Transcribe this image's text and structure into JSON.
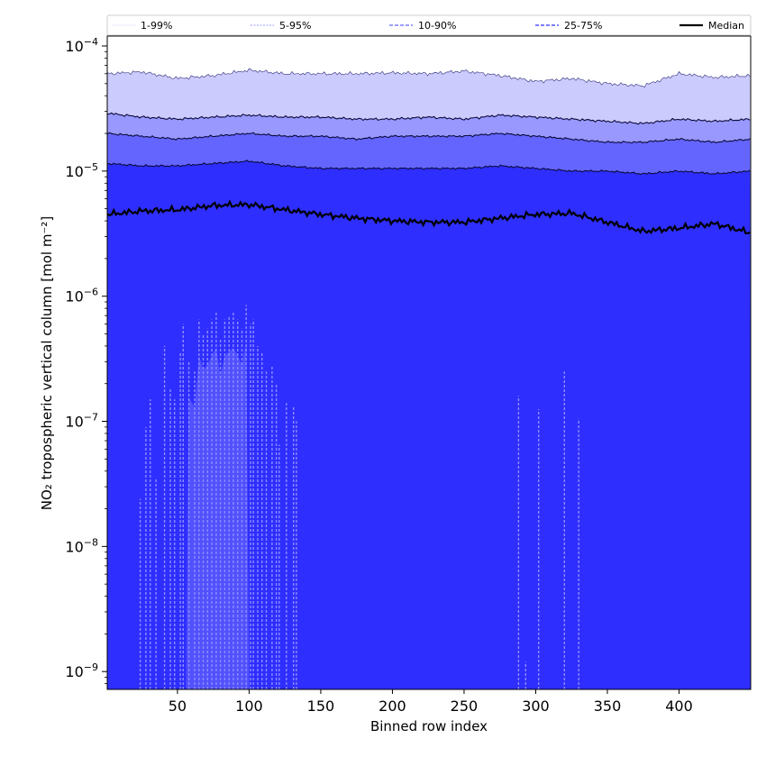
{
  "chart_data": {
    "type": "area",
    "xlabel": "Binned row index",
    "ylabel": "NO₂ tropospheric vertical column [mol m⁻²]",
    "y_scale": "log",
    "xlim": [
      1,
      450
    ],
    "ylim": [
      7.2e-10,
      0.00012
    ],
    "x_ticks": [
      50,
      100,
      150,
      200,
      250,
      300,
      350,
      400
    ],
    "x_tick_labels": [
      "50",
      "100",
      "150",
      "200",
      "250",
      "300",
      "350",
      "400"
    ],
    "y_ticks": [
      1e-09,
      1e-08,
      1e-07,
      1e-06,
      1e-05,
      0.0001
    ],
    "y_tick_labels": [
      {
        "base": "10",
        "exp": "−9"
      },
      {
        "base": "10",
        "exp": "−8"
      },
      {
        "base": "10",
        "exp": "−7"
      },
      {
        "base": "10",
        "exp": "−6"
      },
      {
        "base": "10",
        "exp": "−5"
      },
      {
        "base": "10",
        "exp": "−4"
      }
    ],
    "legend_position": "top, outside plot area",
    "grid": false,
    "colors": {
      "band_1_99": "#cccbfe",
      "band_5_95": "#9898fe",
      "band_10_90": "#6465fe",
      "band_25_75": "#5151fe",
      "fill_base": "#2e2eff",
      "median": "#000000"
    },
    "x": [
      1,
      25,
      50,
      75,
      100,
      125,
      150,
      175,
      200,
      225,
      250,
      275,
      300,
      325,
      350,
      375,
      400,
      425,
      450
    ],
    "series": [
      {
        "name": "1-99%",
        "style": "dotted",
        "upper": [
          6e-05,
          6.2e-05,
          5.5e-05,
          5.8e-05,
          6.4e-05,
          6e-05,
          6e-05,
          6e-05,
          6.1e-05,
          6e-05,
          6.3e-05,
          5.8e-05,
          5.2e-05,
          5.5e-05,
          5e-05,
          4.8e-05,
          6e-05,
          5.6e-05,
          5.8e-05
        ]
      },
      {
        "name": "5-95%",
        "style": "dashed",
        "upper": [
          2.9e-05,
          2.7e-05,
          2.6e-05,
          2.7e-05,
          2.8e-05,
          2.7e-05,
          2.7e-05,
          2.6e-05,
          2.6e-05,
          2.7e-05,
          2.6e-05,
          2.8e-05,
          2.7e-05,
          2.6e-05,
          2.5e-05,
          2.4e-05,
          2.6e-05,
          2.5e-05,
          2.6e-05
        ]
      },
      {
        "name": "10-90%",
        "style": "dashed",
        "upper": [
          2e-05,
          1.9e-05,
          1.8e-05,
          1.9e-05,
          2e-05,
          1.9e-05,
          1.9e-05,
          1.8e-05,
          1.9e-05,
          1.9e-05,
          1.9e-05,
          2e-05,
          1.9e-05,
          1.8e-05,
          1.7e-05,
          1.7e-05,
          1.8e-05,
          1.7e-05,
          1.8e-05
        ]
      },
      {
        "name": "25-75%",
        "style": "dashed",
        "upper": [
          1.15e-05,
          1.1e-05,
          1.1e-05,
          1.15e-05,
          1.2e-05,
          1.1e-05,
          1.05e-05,
          1.05e-05,
          1.05e-05,
          1.05e-05,
          1.05e-05,
          1.1e-05,
          1.05e-05,
          1e-05,
          1e-05,
          9.5e-06,
          1e-05,
          9.5e-06,
          1e-05
        ]
      },
      {
        "name": "Median",
        "style": "solid",
        "values": [
          4.5e-06,
          4.8e-06,
          4.9e-06,
          5.3e-06,
          5.4e-06,
          4.9e-06,
          4.5e-06,
          4.2e-06,
          4e-06,
          3.9e-06,
          3.9e-06,
          4.2e-06,
          4.5e-06,
          4.6e-06,
          3.9e-06,
          3.3e-06,
          3.5e-06,
          3.8e-06,
          3.2e-06
        ]
      }
    ],
    "lower_spikes": [
      {
        "x": 24,
        "y": 2.4e-08
      },
      {
        "x": 28,
        "y": 9e-08
      },
      {
        "x": 31,
        "y": 1.5e-07
      },
      {
        "x": 35,
        "y": 3.5e-08
      },
      {
        "x": 41,
        "y": 4e-07
      },
      {
        "x": 45,
        "y": 1.8e-07
      },
      {
        "x": 48,
        "y": 1.5e-07
      },
      {
        "x": 52,
        "y": 3.5e-07
      },
      {
        "x": 54,
        "y": 6e-07
      },
      {
        "x": 58,
        "y": 3e-07
      },
      {
        "x": 62,
        "y": 2.5e-07
      },
      {
        "x": 65,
        "y": 6.5e-07
      },
      {
        "x": 68,
        "y": 5e-07
      },
      {
        "x": 71,
        "y": 5.5e-07
      },
      {
        "x": 74,
        "y": 6.5e-07
      },
      {
        "x": 77,
        "y": 7.5e-07
      },
      {
        "x": 80,
        "y": 4.5e-07
      },
      {
        "x": 83,
        "y": 6.5e-07
      },
      {
        "x": 86,
        "y": 7e-07
      },
      {
        "x": 89,
        "y": 7.5e-07
      },
      {
        "x": 92,
        "y": 6.5e-07
      },
      {
        "x": 95,
        "y": 5.5e-07
      },
      {
        "x": 98,
        "y": 8.5e-07
      },
      {
        "x": 101,
        "y": 6e-07
      },
      {
        "x": 103,
        "y": 6.5e-07
      },
      {
        "x": 106,
        "y": 4e-07
      },
      {
        "x": 109,
        "y": 3.5e-07
      },
      {
        "x": 112,
        "y": 2.5e-07
      },
      {
        "x": 116,
        "y": 2.8e-07
      },
      {
        "x": 119,
        "y": 2e-07
      },
      {
        "x": 121,
        "y": 6.5e-08
      },
      {
        "x": 126,
        "y": 1.4e-07
      },
      {
        "x": 131,
        "y": 1.3e-07
      },
      {
        "x": 133,
        "y": 1e-07
      },
      {
        "x": 288,
        "y": 1.6e-07
      },
      {
        "x": 293,
        "y": 1.2e-09
      },
      {
        "x": 302,
        "y": 1.25e-07
      },
      {
        "x": 320,
        "y": 2.5e-07
      },
      {
        "x": 330,
        "y": 1.05e-07
      }
    ],
    "light_region_x": [
      56,
      100
    ]
  }
}
